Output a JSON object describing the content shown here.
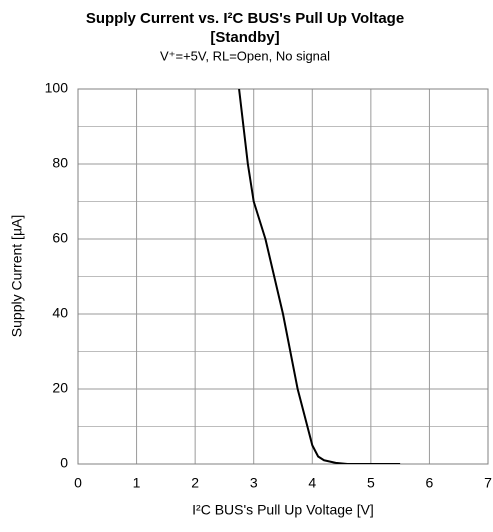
{
  "chart_data": {
    "type": "line",
    "title": "Supply Current vs. I²C BUS's Pull Up Voltage",
    "title_line2": "[Standby]",
    "subtitle": "V⁺=+5V, RL=Open, No signal",
    "x_label": "I²C BUS's Pull Up Voltage [V]",
    "y_label": "Supply Current [µA]",
    "xlim": [
      0,
      7
    ],
    "xticks": [
      0,
      1,
      2,
      3,
      4,
      5,
      6,
      7
    ],
    "ylim": [
      0,
      100
    ],
    "yticks": [
      0,
      20,
      40,
      60,
      80,
      100
    ],
    "y_minor_grid": [
      10,
      30,
      50,
      70,
      90
    ],
    "grid": true,
    "series": [
      {
        "color": "#000000",
        "x": [
          2.75,
          2.9,
          3.0,
          3.2,
          3.5,
          3.75,
          4.0,
          4.1,
          4.2,
          4.4,
          4.6,
          5.0,
          5.5
        ],
        "values": [
          100,
          80,
          70,
          60,
          40,
          20,
          5,
          2,
          1,
          0.3,
          0,
          0,
          0
        ]
      }
    ]
  }
}
